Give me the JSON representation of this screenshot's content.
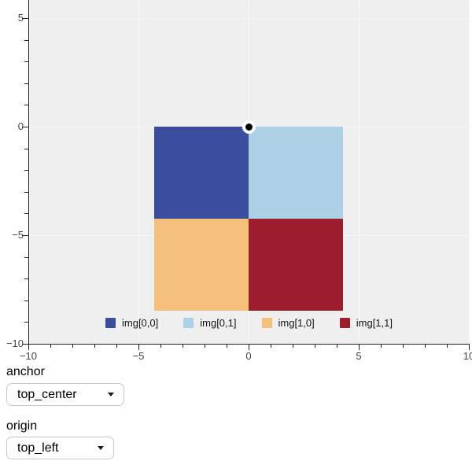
{
  "figure": {
    "background_color": "#efefef",
    "grid_color": "#f7f7f7",
    "axis_color": "#212121",
    "tick_label_color": "#444444",
    "x_axis": {
      "major_ticks": [
        -10,
        -5,
        0,
        5,
        10
      ],
      "labels": [
        "−10",
        "−5",
        "0",
        "5",
        "10"
      ],
      "minor_step": 1
    },
    "y_axis": {
      "major_ticks": [
        5,
        0,
        -5,
        -10
      ],
      "labels": [
        "5",
        "0",
        "−5",
        "−10"
      ],
      "minor_step": 1
    }
  },
  "chart_data": {
    "type": "heatmap",
    "title": "",
    "x_range": [
      -10,
      10
    ],
    "y_range": [
      -10,
      5.8
    ],
    "grid": true,
    "image_extent": {
      "x0": -4.3,
      "x1": 4.3,
      "y0": -8.5,
      "y1": 0
    },
    "anchor_point": {
      "x": 0,
      "y": 0
    },
    "cells": [
      {
        "row": 0,
        "col": 0,
        "label": "img[0,0]",
        "color": "#3b4e9d"
      },
      {
        "row": 0,
        "col": 1,
        "label": "img[0,1]",
        "color": "#acd1e6"
      },
      {
        "row": 1,
        "col": 0,
        "label": "img[1,0]",
        "color": "#f5c07a"
      },
      {
        "row": 1,
        "col": 1,
        "label": "img[1,1]",
        "color": "#9c1d2b"
      }
    ],
    "legend": {
      "position": "bottom_center",
      "items": [
        "img[0,0]",
        "img[0,1]",
        "img[1,0]",
        "img[1,1]"
      ]
    }
  },
  "controls": {
    "anchor": {
      "label": "anchor",
      "value": "top_center"
    },
    "origin": {
      "label": "origin",
      "value": "top_left"
    }
  }
}
